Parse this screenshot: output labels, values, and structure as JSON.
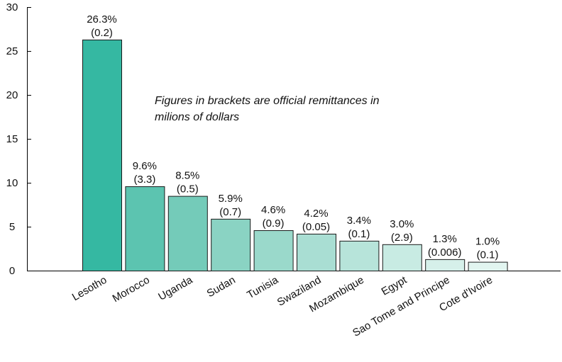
{
  "chart_data": {
    "type": "bar",
    "categories": [
      "Lesotho",
      "Morocco",
      "Uganda",
      "Sudan",
      "Tunisia",
      "Swaziland",
      "Mozambique",
      "Egypt",
      "Sao Tome and Principe",
      "Cote d'Ivoire"
    ],
    "values": [
      26.3,
      9.6,
      8.5,
      5.9,
      4.6,
      4.2,
      3.4,
      3.0,
      1.3,
      1.0
    ],
    "value_labels": [
      "26.3%",
      "9.6%",
      "8.5%",
      "5.9%",
      "4.6%",
      "4.2%",
      "3.4%",
      "3.0%",
      "1.3%",
      "1.0%"
    ],
    "bracket_labels": [
      "(0.2)",
      "(3.3)",
      "(0.5)",
      "(0.7)",
      "(0.9)",
      "(0.05)",
      "(0.1)",
      "(2.9)",
      "(0.006)",
      "(0.1)"
    ],
    "bar_colors": [
      "#35b8a2",
      "#5cc4b0",
      "#74cbb9",
      "#8ad3c3",
      "#9ad9cb",
      "#a9ded3",
      "#b7e4da",
      "#c8ebe3",
      "#d6f0ea",
      "#e2f5f0"
    ],
    "yticks": [
      0,
      5,
      10,
      15,
      20,
      25,
      30
    ],
    "ylim": [
      0,
      30
    ],
    "grid": false,
    "annotation": [
      "Figures in brackets are official remittances in",
      "milions of dollars"
    ],
    "title": "",
    "xlabel": "",
    "ylabel": ""
  }
}
